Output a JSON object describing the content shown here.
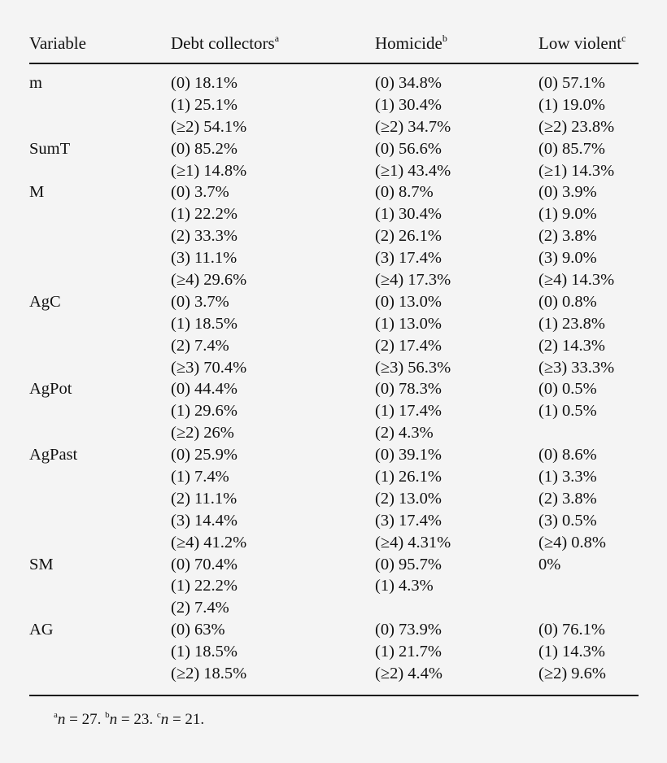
{
  "headers": [
    {
      "label": "Variable",
      "sup": ""
    },
    {
      "label": "Debt collectors",
      "sup": "a"
    },
    {
      "label": "Homicide",
      "sup": "b"
    },
    {
      "label": "Low violent",
      "sup": "c"
    }
  ],
  "groups": [
    {
      "variable": "m",
      "rows": [
        [
          "(0) 18.1%",
          "(0) 34.8%",
          "(0) 57.1%"
        ],
        [
          "(1) 25.1%",
          "(1) 30.4%",
          "(1) 19.0%"
        ],
        [
          "(≥2) 54.1%",
          "(≥2) 34.7%",
          "(≥2) 23.8%"
        ]
      ]
    },
    {
      "variable": "SumT",
      "rows": [
        [
          "(0) 85.2%",
          "(0) 56.6%",
          "(0) 85.7%"
        ],
        [
          "(≥1) 14.8%",
          "(≥1) 43.4%",
          "(≥1) 14.3%"
        ]
      ]
    },
    {
      "variable": "M",
      "rows": [
        [
          "(0) 3.7%",
          "(0) 8.7%",
          "(0) 3.9%"
        ],
        [
          "(1) 22.2%",
          "(1) 30.4%",
          "(1) 9.0%"
        ],
        [
          "(2) 33.3%",
          "(2) 26.1%",
          "(2) 3.8%"
        ],
        [
          "(3) 11.1%",
          "(3) 17.4%",
          "(3) 9.0%"
        ],
        [
          "(≥4) 29.6%",
          "(≥4) 17.3%",
          "(≥4) 14.3%"
        ]
      ]
    },
    {
      "variable": "AgC",
      "rows": [
        [
          "(0) 3.7%",
          "(0) 13.0%",
          "(0) 0.8%"
        ],
        [
          "(1) 18.5%",
          "(1) 13.0%",
          "(1) 23.8%"
        ],
        [
          "(2) 7.4%",
          "(2) 17.4%",
          "(2) 14.3%"
        ],
        [
          "(≥3) 70.4%",
          "(≥3) 56.3%",
          "(≥3) 33.3%"
        ]
      ]
    },
    {
      "variable": "AgPot",
      "rows": [
        [
          "(0) 44.4%",
          "(0) 78.3%",
          "(0) 0.5%"
        ],
        [
          "(1) 29.6%",
          "(1) 17.4%",
          "(1) 0.5%"
        ],
        [
          "(≥2) 26%",
          "(2) 4.3%",
          ""
        ]
      ]
    },
    {
      "variable": "AgPast",
      "rows": [
        [
          "(0) 25.9%",
          "(0) 39.1%",
          "(0) 8.6%"
        ],
        [
          "(1) 7.4%",
          "(1) 26.1%",
          "(1) 3.3%"
        ],
        [
          "(2) 11.1%",
          "(2) 13.0%",
          "(2) 3.8%"
        ],
        [
          "(3) 14.4%",
          "(3) 17.4%",
          "(3) 0.5%"
        ],
        [
          "(≥4) 41.2%",
          "(≥4) 4.31%",
          "(≥4) 0.8%"
        ]
      ]
    },
    {
      "variable": "SM",
      "rows": [
        [
          "(0) 70.4%",
          "(0) 95.7%",
          "0%"
        ],
        [
          "(1) 22.2%",
          "(1) 4.3%",
          ""
        ],
        [
          "(2) 7.4%",
          "",
          ""
        ]
      ]
    },
    {
      "variable": "AG",
      "rows": [
        [
          "(0) 63%",
          "(0) 73.9%",
          "(0) 76.1%"
        ],
        [
          "(1) 18.5%",
          "(1) 21.7%",
          "(1) 14.3%"
        ],
        [
          "(≥2) 18.5%",
          "(≥2) 4.4%",
          "(≥2) 9.6%"
        ]
      ]
    }
  ],
  "footnotes": [
    {
      "sup": "a",
      "var": "n",
      "text": " = 27. "
    },
    {
      "sup": "b",
      "var": "n",
      "text": " = 23. "
    },
    {
      "sup": "c",
      "var": "n",
      "text": " = 21."
    }
  ]
}
